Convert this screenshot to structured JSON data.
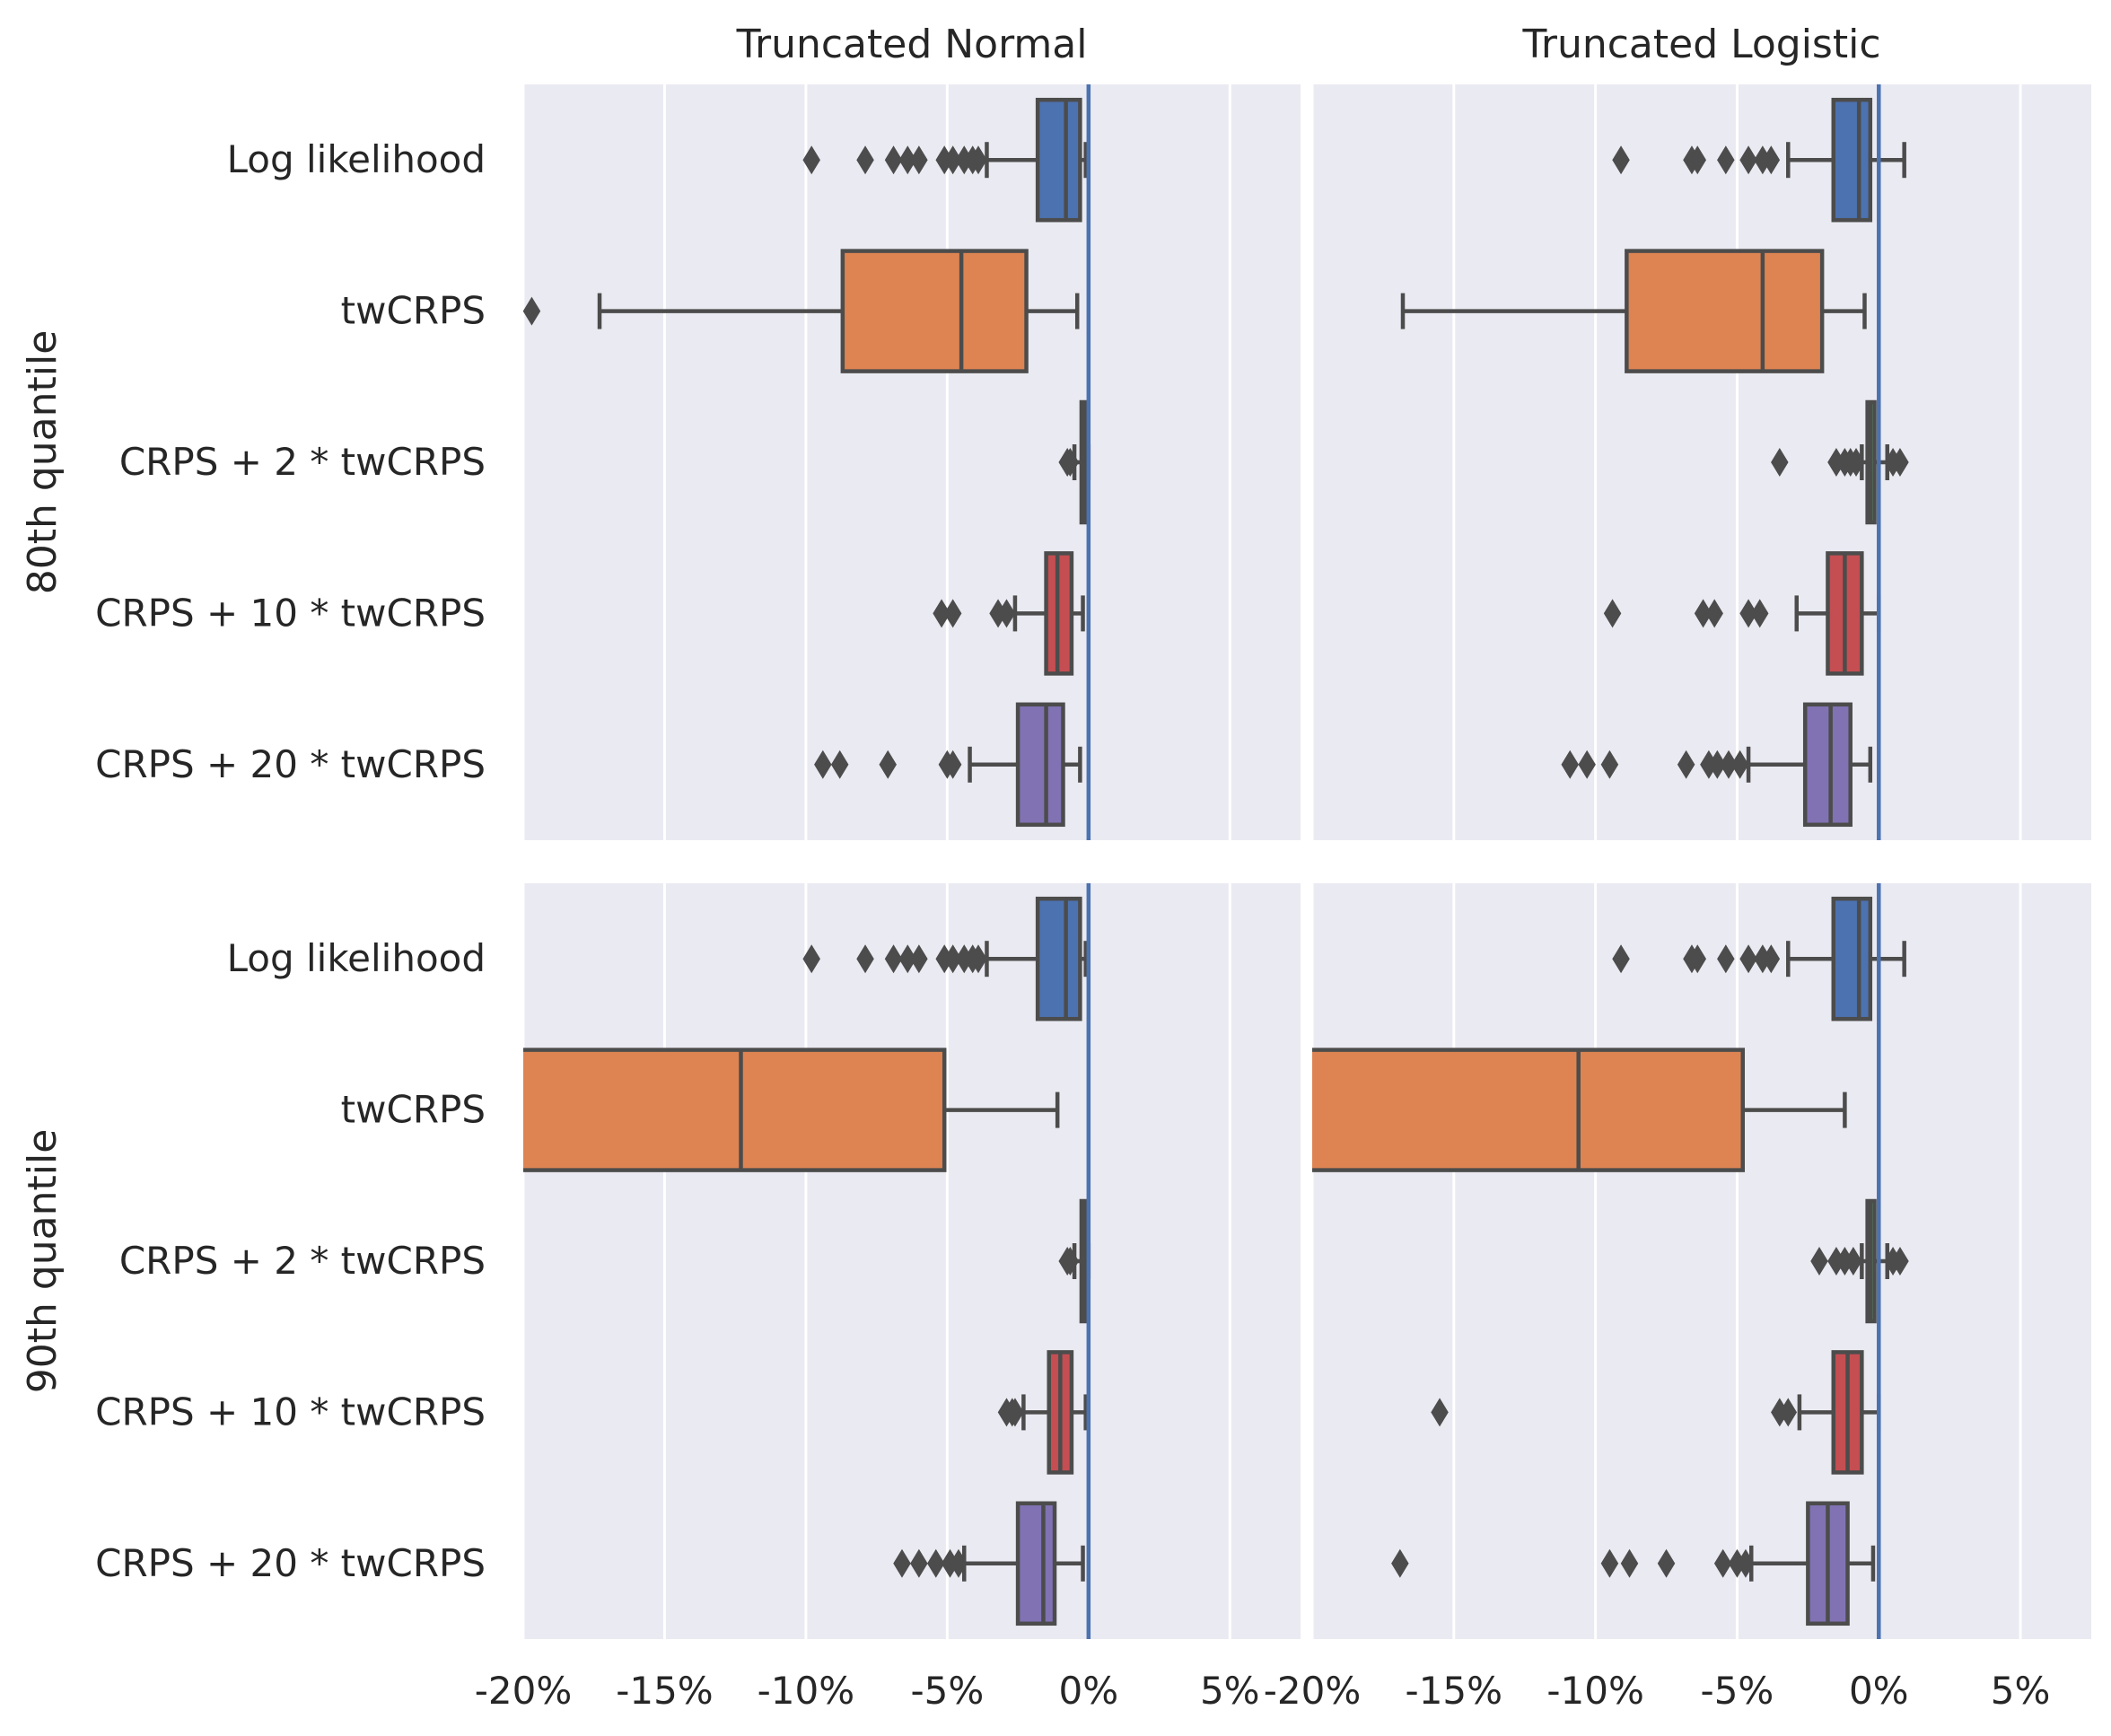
{
  "chart_data": {
    "type": "box",
    "facet_titles": [
      "Truncated Normal",
      "Truncated Logistic"
    ],
    "row_labels": [
      "80th quantile",
      "90th quantile"
    ],
    "categories": [
      "Log likelihood",
      "twCRPS",
      "CRPS + 2 * twCRPS",
      "CRPS + 10 * twCRPS",
      "CRPS + 20 * twCRPS"
    ],
    "colors": [
      "#4c72b0",
      "#dd8452",
      "#55a868",
      "#c44e52",
      "#8172b3"
    ],
    "x_unit": "%",
    "xlim": [
      -20,
      7.5
    ],
    "xticks": [
      -20,
      -15,
      -10,
      -5,
      0,
      5
    ],
    "xtick_labels": [
      "-20%",
      "-15%",
      "-10%",
      "-5%",
      "0%",
      "5%"
    ],
    "reference_line": 0,
    "grid": true,
    "panels": [
      {
        "row": "80th quantile",
        "column": "Truncated Normal",
        "boxes": [
          {
            "label": "Log likelihood",
            "whislo": -3.6,
            "q1": -1.8,
            "med": -0.8,
            "q3": -0.3,
            "whishi": -0.1,
            "fliers": [
              -9.8,
              -7.9,
              -6.9,
              -6.4,
              -6.0,
              -5.1,
              -4.8,
              -4.4,
              -4.1,
              -3.9
            ]
          },
          {
            "label": "twCRPS",
            "whislo": -17.3,
            "q1": -8.7,
            "med": -4.5,
            "q3": -2.2,
            "whishi": -0.4,
            "fliers": [
              -19.7
            ]
          },
          {
            "label": "CRPS + 2 * twCRPS",
            "whislo": -0.5,
            "q1": -0.25,
            "med": -0.15,
            "q3": -0.05,
            "whishi": 0.0,
            "fliers": [
              -0.75,
              -0.65
            ]
          },
          {
            "label": "CRPS + 10 * twCRPS",
            "whislo": -2.6,
            "q1": -1.5,
            "med": -1.1,
            "q3": -0.6,
            "whishi": -0.2,
            "fliers": [
              -5.2,
              -4.8,
              -3.2,
              -2.9
            ]
          },
          {
            "label": "CRPS + 20 * twCRPS",
            "whislo": -4.2,
            "q1": -2.5,
            "med": -1.5,
            "q3": -0.9,
            "whishi": -0.3,
            "fliers": [
              -9.4,
              -8.8,
              -7.1,
              -5.0,
              -4.8
            ]
          }
        ]
      },
      {
        "row": "80th quantile",
        "column": "Truncated Logistic",
        "boxes": [
          {
            "label": "Log likelihood",
            "whislo": -3.2,
            "q1": -1.6,
            "med": -0.7,
            "q3": -0.3,
            "whishi": 0.9,
            "fliers": [
              -9.1,
              -6.6,
              -6.4,
              -5.4,
              -4.6,
              -4.1,
              -3.8
            ]
          },
          {
            "label": "twCRPS",
            "whislo": -16.8,
            "q1": -8.9,
            "med": -4.1,
            "q3": -2.0,
            "whishi": -0.5,
            "fliers": []
          },
          {
            "label": "CRPS + 2 * twCRPS",
            "whislo": -0.6,
            "q1": -0.4,
            "med": -0.3,
            "q3": -0.15,
            "whishi": 0.3,
            "fliers": [
              -3.5,
              -1.5,
              -1.2,
              -1.0,
              -0.8,
              0.5,
              0.75
            ]
          },
          {
            "label": "CRPS + 10 * twCRPS",
            "whislo": -2.9,
            "q1": -1.8,
            "med": -1.2,
            "q3": -0.6,
            "whishi": 0.0,
            "fliers": [
              -9.4,
              -6.2,
              -5.8,
              -4.6,
              -4.2
            ]
          },
          {
            "label": "CRPS + 20 * twCRPS",
            "whislo": -4.6,
            "q1": -2.6,
            "med": -1.7,
            "q3": -1.0,
            "whishi": -0.3,
            "fliers": [
              -10.9,
              -10.3,
              -9.5,
              -6.8,
              -6.0,
              -5.7,
              -5.3,
              -4.9
            ]
          }
        ]
      },
      {
        "row": "90th quantile",
        "column": "Truncated Normal",
        "boxes": [
          {
            "label": "Log likelihood",
            "whislo": -3.6,
            "q1": -1.8,
            "med": -0.8,
            "q3": -0.3,
            "whishi": -0.1,
            "fliers": [
              -9.8,
              -7.9,
              -6.9,
              -6.4,
              -6.0,
              -5.1,
              -4.8,
              -4.4,
              -4.1,
              -3.9
            ]
          },
          {
            "label": "twCRPS",
            "whislo": -25.0,
            "q1": -25.0,
            "med": -12.3,
            "q3": -5.1,
            "whishi": -1.1,
            "fliers": []
          },
          {
            "label": "CRPS + 2 * twCRPS",
            "whislo": -0.5,
            "q1": -0.25,
            "med": -0.15,
            "q3": -0.05,
            "whishi": 0.0,
            "fliers": [
              -0.75,
              -0.65
            ]
          },
          {
            "label": "CRPS + 10 * twCRPS",
            "whislo": -2.3,
            "q1": -1.4,
            "med": -1.0,
            "q3": -0.6,
            "whishi": -0.1,
            "fliers": [
              -2.9,
              -2.7,
              -2.6
            ]
          },
          {
            "label": "CRPS + 20 * twCRPS",
            "whislo": -4.4,
            "q1": -2.5,
            "med": -1.6,
            "q3": -1.2,
            "whishi": -0.2,
            "fliers": [
              -6.6,
              -6.0,
              -5.4,
              -4.9,
              -4.6
            ]
          }
        ]
      },
      {
        "row": "90th quantile",
        "column": "Truncated Logistic",
        "boxes": [
          {
            "label": "Log likelihood",
            "whislo": -3.2,
            "q1": -1.6,
            "med": -0.7,
            "q3": -0.3,
            "whishi": 0.9,
            "fliers": [
              -9.1,
              -6.6,
              -6.4,
              -5.4,
              -4.6,
              -4.1,
              -3.8
            ]
          },
          {
            "label": "twCRPS",
            "whislo": -25.0,
            "q1": -25.0,
            "med": -10.6,
            "q3": -4.8,
            "whishi": -1.2,
            "fliers": []
          },
          {
            "label": "CRPS + 2 * twCRPS",
            "whislo": -0.6,
            "q1": -0.4,
            "med": -0.3,
            "q3": -0.15,
            "whishi": 0.3,
            "fliers": [
              -2.1,
              -1.5,
              -1.2,
              -0.9,
              0.5,
              0.75
            ]
          },
          {
            "label": "CRPS + 10 * twCRPS",
            "whislo": -2.8,
            "q1": -1.6,
            "med": -1.1,
            "q3": -0.6,
            "whishi": 0.0,
            "fliers": [
              -15.5,
              -3.5,
              -3.2
            ]
          },
          {
            "label": "CRPS + 20 * twCRPS",
            "whislo": -4.5,
            "q1": -2.5,
            "med": -1.8,
            "q3": -1.1,
            "whishi": -0.2,
            "fliers": [
              -16.9,
              -9.5,
              -8.8,
              -7.5,
              -5.5,
              -5.0,
              -4.7
            ]
          }
        ]
      }
    ]
  }
}
